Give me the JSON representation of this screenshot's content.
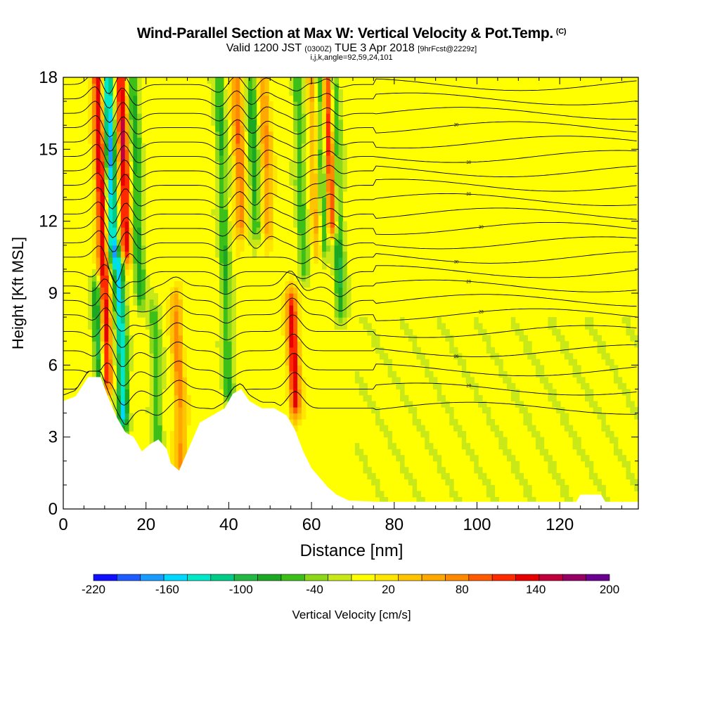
{
  "header": {
    "title": "Wind-Parallel Section at Max W: Vertical Velocity & Pot.Temp.",
    "copyright": "(C)",
    "valid_prefix": "Valid 1200 JST",
    "valid_utc": "(0300Z)",
    "valid_date": "TUE 3 Apr 2018",
    "forecast": "[9hrFcst@2229z]",
    "indices": "i,j,k,angle=92,59,24,101"
  },
  "chart_data": {
    "type": "heatmap",
    "xlabel": "Distance [nm]",
    "ylabel": "Height [Kft MSL]",
    "xlim": [
      0,
      139
    ],
    "ylim": [
      0,
      18
    ],
    "xticks": [
      0,
      20,
      40,
      60,
      80,
      100,
      120
    ],
    "yticks": [
      0,
      3,
      6,
      9,
      12,
      15,
      18
    ],
    "colorbar": {
      "label": "Vertical Velocity [cm/s]",
      "tick_labels": [
        -220,
        -160,
        -100,
        -40,
        20,
        80,
        140,
        200
      ],
      "bins": [
        -220,
        -200,
        -180,
        -160,
        -140,
        -120,
        -100,
        -80,
        -60,
        -40,
        -20,
        0,
        20,
        40,
        60,
        80,
        100,
        120,
        140,
        160,
        180,
        200
      ],
      "colors": [
        "#1010ff",
        "#1e5cff",
        "#1a9bff",
        "#00d8ff",
        "#00e8c8",
        "#00cc88",
        "#22b844",
        "#1ca822",
        "#3cbf18",
        "#8cd818",
        "#c8e818",
        "#ffff00",
        "#ffe600",
        "#ffc400",
        "#ffa800",
        "#ff8a00",
        "#ff5a00",
        "#ff2a00",
        "#e60000",
        "#c0003c",
        "#960064",
        "#6a0090"
      ]
    },
    "terrain_kft": [
      [
        0,
        4.5
      ],
      [
        3,
        4.7
      ],
      [
        6,
        5.5
      ],
      [
        9,
        5.5
      ],
      [
        11,
        4.6
      ],
      [
        13,
        3.8
      ],
      [
        15,
        3.2
      ],
      [
        17,
        3.0
      ],
      [
        19,
        2.4
      ],
      [
        21,
        2.7
      ],
      [
        23,
        2.9
      ],
      [
        25,
        2.5
      ],
      [
        26,
        1.9
      ],
      [
        28,
        1.6
      ],
      [
        29,
        2.0
      ],
      [
        31,
        2.8
      ],
      [
        33,
        3.6
      ],
      [
        36,
        3.9
      ],
      [
        39,
        4.2
      ],
      [
        41,
        4.8
      ],
      [
        43,
        5.0
      ],
      [
        45,
        4.5
      ],
      [
        48,
        4.2
      ],
      [
        51,
        4.2
      ],
      [
        54,
        3.9
      ],
      [
        56,
        3.3
      ],
      [
        58,
        2.4
      ],
      [
        60,
        1.7
      ],
      [
        62,
        1.3
      ],
      [
        64,
        0.9
      ],
      [
        66,
        0.6
      ],
      [
        69,
        0.35
      ],
      [
        76,
        0.3
      ],
      [
        90,
        0.3
      ],
      [
        110,
        0.3
      ],
      [
        124,
        0.3
      ],
      [
        125,
        0.6
      ],
      [
        130,
        0.6
      ],
      [
        131,
        0.3
      ],
      [
        139,
        0.3
      ]
    ],
    "updraft_bands": [
      {
        "x": 10.5,
        "z0": 5.5,
        "z1": 18.0,
        "w": 150
      },
      {
        "x": 15.2,
        "z0": 11.0,
        "z1": 18.0,
        "w": 150
      },
      {
        "x": 43.0,
        "z0": 12.0,
        "z1": 18.0,
        "w": 85
      },
      {
        "x": 49.5,
        "z0": 12.0,
        "z1": 18.0,
        "w": 70
      },
      {
        "x": 56.0,
        "z0": 4.5,
        "z1": 8.5,
        "w": 140
      },
      {
        "x": 65.0,
        "z0": 12.0,
        "z1": 18.0,
        "w": 145
      },
      {
        "x": 28.5,
        "z0": 2.0,
        "z1": 8.5,
        "w": 75
      },
      {
        "x": 61.5,
        "z0": 11.0,
        "z1": 18.0,
        "w": 60
      }
    ],
    "downdraft_bands": [
      {
        "x": 12.0,
        "z0": 11.0,
        "z1": 18.0,
        "w": -170
      },
      {
        "x": 14.5,
        "z0": 4.0,
        "z1": 10.0,
        "w": -150
      },
      {
        "x": 18.5,
        "z0": 9.0,
        "z1": 18.0,
        "w": -80
      },
      {
        "x": 40.0,
        "z0": 5.0,
        "z1": 18.0,
        "w": -70
      },
      {
        "x": 46.5,
        "z0": 12.0,
        "z1": 18.0,
        "w": -80
      },
      {
        "x": 58.0,
        "z0": 10.0,
        "z1": 18.0,
        "w": -60
      },
      {
        "x": 63.0,
        "z0": 11.0,
        "z1": 18.0,
        "w": -80
      },
      {
        "x": 67.0,
        "z0": 8.5,
        "z1": 18.0,
        "w": -90
      },
      {
        "x": 23.0,
        "z0": 2.5,
        "z1": 8.0,
        "w": -60
      },
      {
        "x": 9.0,
        "z0": 4.5,
        "z1": 9.0,
        "w": -110
      }
    ],
    "theta_contours": [
      {
        "z": 4.2,
        "label": ""
      },
      {
        "z": 5.0,
        "label": "29"
      },
      {
        "z": 5.8,
        "label": ""
      },
      {
        "z": 6.6,
        "label": "26"
      },
      {
        "z": 7.4,
        "label": ""
      },
      {
        "z": 8.1,
        "label": "28"
      },
      {
        "z": 8.7,
        "label": ""
      },
      {
        "z": 9.3,
        "label": "29"
      },
      {
        "z": 9.9,
        "label": ""
      },
      {
        "z": 10.5,
        "label": "30"
      },
      {
        "z": 11.1,
        "label": ""
      },
      {
        "z": 11.7,
        "label": "30"
      },
      {
        "z": 12.3,
        "label": ""
      },
      {
        "z": 12.9,
        "label": "30"
      },
      {
        "z": 13.5,
        "label": ""
      },
      {
        "z": 14.1,
        "label": ""
      },
      {
        "z": 14.7,
        "label": "30"
      },
      {
        "z": 15.3,
        "label": ""
      },
      {
        "z": 15.9,
        "label": "30"
      },
      {
        "z": 16.5,
        "label": ""
      },
      {
        "z": 17.1,
        "label": ""
      },
      {
        "z": 17.7,
        "label": ""
      }
    ]
  }
}
